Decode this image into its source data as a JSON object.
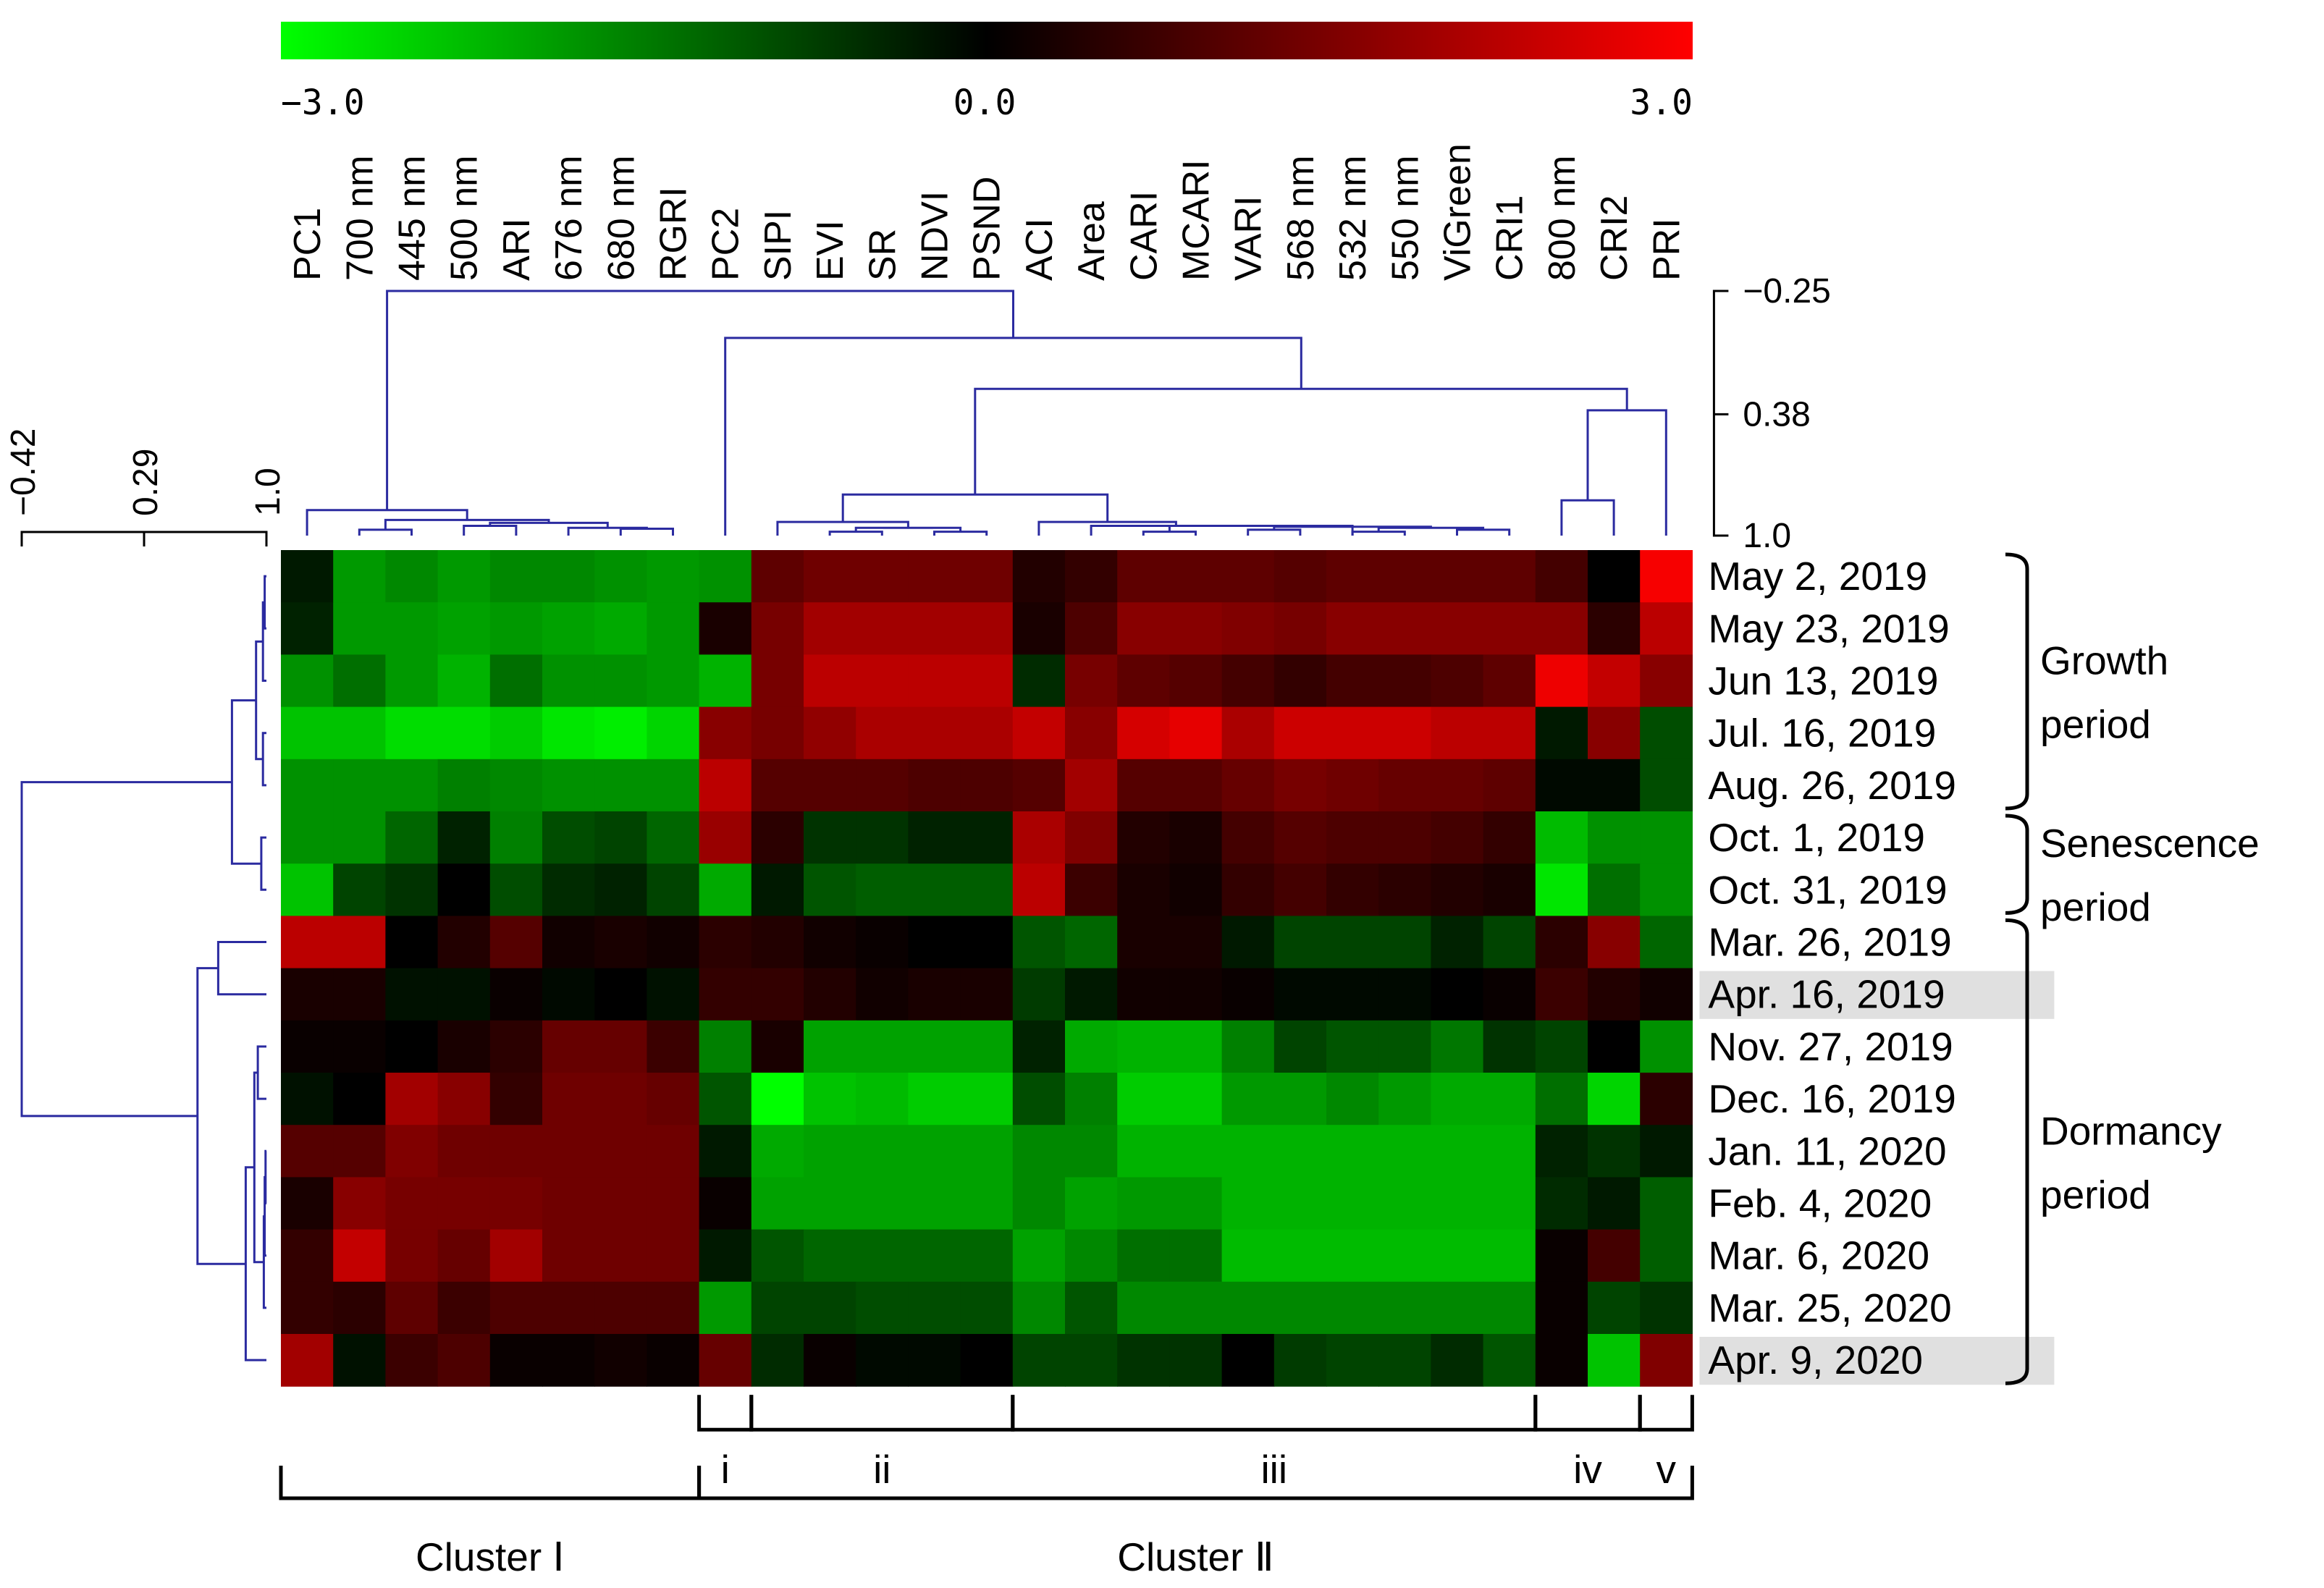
{
  "chart_data": {
    "type": "heatmap",
    "title": "",
    "colorbar": {
      "colors": [
        "#00ff00",
        "#000000",
        "#ff0000"
      ],
      "min_label": "−3.0",
      "mid_label": "0.0",
      "max_label": "3.0",
      "min": -3.0,
      "max": 3.0
    },
    "columns": [
      "PC1",
      "700 nm",
      "445 nm",
      "500 nm",
      "ARI",
      "676 nm",
      "680 nm",
      "RGRI",
      "PC2",
      "SIPI",
      "EVI",
      "SR",
      "NDVI",
      "PSND",
      "ACI",
      "Area",
      "CARI",
      "MCARI",
      "VARI",
      "568 nm",
      "532 nm",
      "550 nm",
      "ViGreen",
      "CRI1",
      "800 nm",
      "CRI2",
      "PRI"
    ],
    "rows": [
      "May 2, 2019",
      "May 23, 2019",
      "Jun 13, 2019",
      "Jul. 16, 2019",
      "Aug. 26, 2019",
      "Oct. 1, 2019",
      "Oct. 31, 2019",
      "Mar. 26, 2019",
      "Apr. 16, 2019",
      "Nov. 27, 2019",
      "Dec. 16, 2019",
      "Jan. 11, 2020",
      "Feb. 4, 2020",
      "Mar. 6, 2020",
      "Mar. 25, 2020",
      "Apr. 9, 2020"
    ],
    "highlighted_rows": [
      8,
      15
    ],
    "values": [
      [
        -0.3,
        -1.8,
        -1.6,
        -1.8,
        -1.6,
        -1.6,
        -1.7,
        -1.8,
        -1.7,
        1.1,
        1.3,
        1.3,
        1.3,
        1.3,
        0.4,
        0.6,
        1.1,
        1.1,
        1.1,
        1.0,
        1.1,
        1.1,
        1.1,
        1.1,
        0.8,
        0.0,
        2.9
      ],
      [
        -0.4,
        -1.8,
        -1.8,
        -1.9,
        -1.8,
        -1.9,
        -2.0,
        -1.8,
        0.3,
        1.4,
        1.9,
        1.9,
        1.9,
        1.9,
        0.3,
        0.9,
        1.6,
        1.6,
        1.5,
        1.4,
        1.6,
        1.6,
        1.6,
        1.6,
        1.6,
        0.5,
        2.2
      ],
      [
        -1.7,
        -1.3,
        -1.8,
        -2.1,
        -1.3,
        -1.7,
        -1.7,
        -1.8,
        -2.1,
        1.4,
        2.2,
        2.2,
        2.2,
        2.2,
        -0.5,
        1.4,
        1.1,
        1.0,
        0.8,
        0.6,
        0.8,
        0.8,
        0.9,
        1.1,
        2.8,
        2.3,
        1.6
      ],
      [
        -2.3,
        -2.3,
        -2.6,
        -2.6,
        -2.4,
        -2.7,
        -2.8,
        -2.5,
        1.6,
        1.4,
        1.7,
        2.0,
        2.0,
        2.0,
        2.3,
        1.6,
        2.5,
        2.7,
        2.0,
        2.4,
        2.4,
        2.4,
        2.2,
        2.2,
        -0.3,
        1.6,
        -0.9
      ],
      [
        -1.7,
        -1.7,
        -1.7,
        -1.5,
        -1.6,
        -1.7,
        -1.7,
        -1.7,
        2.2,
        1.0,
        1.0,
        1.0,
        0.9,
        0.9,
        1.0,
        1.9,
        1.0,
        1.0,
        1.2,
        1.4,
        1.3,
        1.2,
        1.2,
        1.1,
        -0.1,
        -0.1,
        -0.9
      ],
      [
        -1.7,
        -1.7,
        -1.2,
        -0.4,
        -1.5,
        -0.9,
        -0.8,
        -1.2,
        1.8,
        0.5,
        -0.6,
        -0.6,
        -0.4,
        -0.4,
        2.0,
        1.5,
        0.4,
        0.3,
        0.8,
        1.0,
        0.9,
        0.9,
        0.8,
        0.6,
        -2.2,
        -1.7,
        -1.7
      ],
      [
        -2.3,
        -0.8,
        -0.6,
        0.0,
        -0.9,
        -0.5,
        -0.4,
        -0.8,
        -2.0,
        -0.3,
        -1.0,
        -1.1,
        -1.1,
        -1.1,
        2.2,
        0.7,
        0.3,
        0.2,
        0.6,
        0.8,
        0.6,
        0.5,
        0.4,
        0.3,
        -2.7,
        -1.3,
        -1.7
      ],
      [
        2.2,
        2.2,
        0.0,
        0.4,
        1.0,
        0.2,
        0.3,
        0.2,
        0.5,
        0.4,
        0.2,
        0.1,
        0.0,
        0.0,
        -1.0,
        -1.2,
        0.3,
        0.3,
        -0.3,
        -0.8,
        -0.8,
        -0.8,
        -0.4,
        -0.8,
        0.5,
        1.6,
        -1.2
      ],
      [
        0.3,
        0.3,
        -0.2,
        -0.2,
        0.1,
        -0.1,
        0.0,
        -0.2,
        0.6,
        0.6,
        0.4,
        0.2,
        0.3,
        0.3,
        -0.7,
        -0.3,
        0.2,
        0.2,
        0.1,
        -0.1,
        -0.1,
        -0.1,
        0.0,
        0.1,
        0.7,
        0.4,
        0.2
      ],
      [
        0.1,
        0.1,
        0.0,
        0.3,
        0.5,
        1.2,
        1.2,
        0.7,
        -1.5,
        0.3,
        -1.9,
        -1.9,
        -1.9,
        -1.9,
        -0.4,
        -2.0,
        -2.1,
        -2.1,
        -1.5,
        -0.8,
        -1.0,
        -1.0,
        -1.4,
        -0.6,
        -0.8,
        0.0,
        -1.7
      ],
      [
        -0.2,
        0.0,
        1.9,
        1.6,
        0.6,
        1.3,
        1.3,
        1.2,
        -1.0,
        -3.0,
        -2.3,
        -2.2,
        -2.4,
        -2.4,
        -0.9,
        -1.5,
        -2.4,
        -2.4,
        -1.8,
        -1.8,
        -1.6,
        -1.8,
        -2.0,
        -2.0,
        -1.3,
        -2.5,
        0.5
      ],
      [
        1.0,
        1.0,
        1.5,
        1.3,
        1.3,
        1.3,
        1.3,
        1.3,
        -0.3,
        -2.0,
        -1.9,
        -1.9,
        -1.9,
        -1.9,
        -1.6,
        -1.6,
        -2.1,
        -2.1,
        -2.1,
        -2.1,
        -2.1,
        -2.1,
        -2.1,
        -2.1,
        -0.4,
        -0.6,
        -0.3
      ],
      [
        0.3,
        1.6,
        1.4,
        1.4,
        1.4,
        1.3,
        1.3,
        1.3,
        0.1,
        -1.9,
        -1.9,
        -1.9,
        -1.9,
        -1.9,
        -1.6,
        -1.9,
        -1.8,
        -1.8,
        -2.1,
        -2.1,
        -2.1,
        -2.1,
        -2.1,
        -2.1,
        -0.5,
        -0.3,
        -1.1
      ],
      [
        0.6,
        2.3,
        1.4,
        1.2,
        1.9,
        1.3,
        1.3,
        1.3,
        -0.3,
        -1.0,
        -1.2,
        -1.2,
        -1.2,
        -1.2,
        -1.9,
        -1.6,
        -1.3,
        -1.3,
        -2.2,
        -2.2,
        -2.2,
        -2.2,
        -2.2,
        -2.2,
        0.1,
        0.8,
        -1.1
      ],
      [
        0.6,
        0.5,
        1.1,
        0.7,
        0.9,
        0.9,
        0.9,
        0.9,
        -1.8,
        -0.8,
        -0.8,
        -0.9,
        -0.9,
        -0.9,
        -1.6,
        -1.0,
        -1.6,
        -1.6,
        -1.6,
        -1.6,
        -1.6,
        -1.6,
        -1.6,
        -1.6,
        0.1,
        -0.8,
        -0.6
      ],
      [
        1.9,
        -0.2,
        0.7,
        0.9,
        0.1,
        0.1,
        0.2,
        0.1,
        1.2,
        -0.5,
        0.1,
        -0.1,
        -0.1,
        0.0,
        -0.8,
        -0.8,
        -0.6,
        -0.6,
        0.0,
        -0.7,
        -0.8,
        -0.8,
        -0.5,
        -1.0,
        0.1,
        -2.3,
        1.5
      ]
    ],
    "column_scale": {
      "labels": [
        "−0.25",
        "0.38",
        "1.0"
      ],
      "values": [
        -0.25,
        0.38,
        1.0
      ]
    },
    "row_scale": {
      "labels": [
        "−0.42",
        "0.29",
        "1.0"
      ],
      "values": [
        -0.42,
        0.29,
        1.0
      ]
    },
    "column_dendrogram": [
      {
        "a": 1,
        "b": 2,
        "h": 0.97
      },
      {
        "a": 10,
        "b": 11,
        "h": 0.98
      },
      {
        "a": 20,
        "b": 21,
        "h": 0.98
      },
      {
        "a": 16,
        "b": 17,
        "h": 0.98
      },
      {
        "a": 18,
        "b": 19,
        "h": 0.97
      },
      {
        "a": 12,
        "b": 13,
        "h": 0.98
      },
      {
        "a": 22,
        "b": 23,
        "h": 0.97
      },
      {
        "a": 6,
        "b": 7,
        "h": 0.965
      },
      {
        "a": 5,
        "b": 6.5,
        "h": 0.96
      },
      {
        "a": 3,
        "b": 4,
        "h": 0.95
      },
      {
        "a": 3.5,
        "b": 5.75,
        "h": 0.935
      },
      {
        "a": 1.5,
        "b": 4.625,
        "h": 0.92
      },
      {
        "a": 0,
        "b": 3.0625,
        "h": 0.87
      },
      {
        "a": 10.5,
        "b": 12.5,
        "h": 0.96
      },
      {
        "a": 9,
        "b": 11.5,
        "h": 0.93
      },
      {
        "a": 20.5,
        "b": 22.5,
        "h": 0.96
      },
      {
        "a": 18.5,
        "b": 21.5,
        "h": 0.955
      },
      {
        "a": 16.5,
        "b": 20,
        "h": 0.95
      },
      {
        "a": 15,
        "b": 18.25,
        "h": 0.95
      },
      {
        "a": 14,
        "b": 16.625,
        "h": 0.93
      },
      {
        "a": 10.25,
        "b": 15.3125,
        "h": 0.79
      },
      {
        "a": 24,
        "b": 25,
        "h": 0.82
      },
      {
        "a": 24.5,
        "b": 26,
        "h": 0.36
      },
      {
        "a": 12.78,
        "b": 25.25,
        "h": 0.25
      },
      {
        "a": 8,
        "b": 19.02,
        "h": -0.01
      },
      {
        "a": 1.53,
        "b": 13.51,
        "h": -0.25
      }
    ],
    "row_dendrogram": [
      {
        "a": 0,
        "b": 1,
        "h": 0.99
      },
      {
        "a": 0.5,
        "b": 2,
        "h": 0.98
      },
      {
        "a": 3,
        "b": 4,
        "h": 0.98
      },
      {
        "a": 1.25,
        "b": 3.5,
        "h": 0.94
      },
      {
        "a": 5,
        "b": 6,
        "h": 0.97
      },
      {
        "a": 2.375,
        "b": 5.5,
        "h": 0.8
      },
      {
        "a": 7,
        "b": 8,
        "h": 0.72
      },
      {
        "a": 11,
        "b": 12,
        "h": 0.995
      },
      {
        "a": 11.5,
        "b": 13,
        "h": 0.99
      },
      {
        "a": 12.25,
        "b": 14,
        "h": 0.985
      },
      {
        "a": 9,
        "b": 10,
        "h": 0.95
      },
      {
        "a": 9.5,
        "b": 13.125,
        "h": 0.93
      },
      {
        "a": 11.31,
        "b": 15,
        "h": 0.88
      },
      {
        "a": 7.5,
        "b": 13.16,
        "h": 0.6
      },
      {
        "a": 3.94,
        "b": 10.33,
        "h": -0.42
      }
    ],
    "row_groups": [
      {
        "label1": "Growth",
        "label2": "period",
        "from": 0,
        "to": 4
      },
      {
        "label1": "Senescence",
        "label2": "period",
        "from": 5,
        "to": 6
      },
      {
        "label1": "Dormancy",
        "label2": "period",
        "from": 7,
        "to": 15
      }
    ],
    "subclusters": [
      {
        "label": "i",
        "from": 8,
        "to": 8
      },
      {
        "label": "ii",
        "from": 9,
        "to": 13
      },
      {
        "label": "iii",
        "from": 14,
        "to": 23
      },
      {
        "label": "iv",
        "from": 24,
        "to": 25
      },
      {
        "label": "v",
        "from": 26,
        "to": 26
      }
    ],
    "clusters": [
      {
        "label": "Cluster Ⅰ",
        "from": 0,
        "to": 7
      },
      {
        "label": "Cluster Ⅱ",
        "from": 8,
        "to": 26
      }
    ]
  }
}
